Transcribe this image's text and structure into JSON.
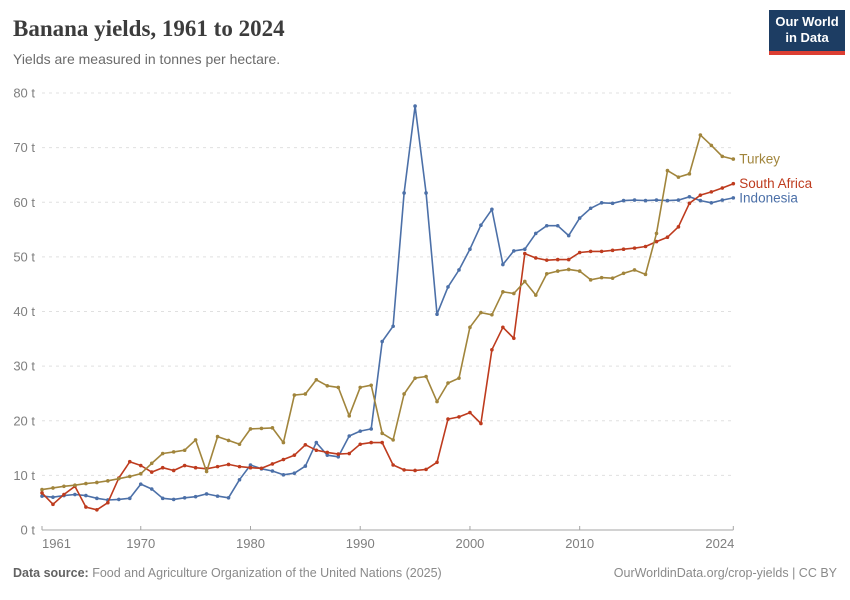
{
  "header": {
    "title": "Banana yields, 1961 to 2024",
    "subtitle": "Yields are measured in tonnes per hectare.",
    "logo": {
      "line1": "Our World",
      "line2": "in Data",
      "bg_color": "#1d3d63",
      "accent_color": "#dc3e32"
    }
  },
  "footer": {
    "source_label": "Data source:",
    "source_text": " Food and Agriculture Organization of the United Nations (2025)",
    "credit_text": "OurWorldinData.org/crop-yields | CC BY"
  },
  "chart_data": {
    "type": "line",
    "title": "Banana yields, 1961 to 2024",
    "ylabel": "tonnes per hectare",
    "ytick_suffix": " t",
    "ylim": [
      0,
      80
    ],
    "yticks": [
      0,
      10,
      20,
      30,
      40,
      50,
      60,
      70,
      80
    ],
    "xticks": [
      1961,
      1970,
      1980,
      1990,
      2000,
      2010,
      2024
    ],
    "grid": "horizontal-dashed",
    "legend_position": "right-of-line-ends",
    "axis_color": "#a5a5a5",
    "grid_color": "#e0e0e0",
    "tick_label_color": "#7f7f7f",
    "x": [
      1961,
      1962,
      1963,
      1964,
      1965,
      1966,
      1967,
      1968,
      1969,
      1970,
      1971,
      1972,
      1973,
      1974,
      1975,
      1976,
      1977,
      1978,
      1979,
      1980,
      1981,
      1982,
      1983,
      1984,
      1985,
      1986,
      1987,
      1988,
      1989,
      1990,
      1991,
      1992,
      1993,
      1994,
      1995,
      1996,
      1997,
      1998,
      1999,
      2000,
      2001,
      2002,
      2003,
      2004,
      2005,
      2006,
      2007,
      2008,
      2009,
      2010,
      2011,
      2012,
      2013,
      2014,
      2015,
      2016,
      2017,
      2018,
      2019,
      2020,
      2021,
      2022,
      2023,
      2024
    ],
    "series": [
      {
        "name": "Turkey",
        "color": "#A1853C",
        "values": [
          7.4,
          7.7,
          8.0,
          8.2,
          8.5,
          8.7,
          9.0,
          9.4,
          9.8,
          10.3,
          12.2,
          14.0,
          14.3,
          14.6,
          16.5,
          10.7,
          17.1,
          16.4,
          15.7,
          18.5,
          18.6,
          18.7,
          16.0,
          24.7,
          24.9,
          27.5,
          26.4,
          26.1,
          20.9,
          26.1,
          26.5,
          17.7,
          16.5,
          24.9,
          27.8,
          28.1,
          23.5,
          26.9,
          27.8,
          37.1,
          39.8,
          39.4,
          43.6,
          43.3,
          45.5,
          43.0,
          46.9,
          47.4,
          47.7,
          47.4,
          45.8,
          46.2,
          46.1,
          47.0,
          47.6,
          46.8,
          54.3,
          65.8,
          64.6,
          65.2,
          72.3,
          70.4,
          68.4,
          67.9
        ]
      },
      {
        "name": "South Africa",
        "color": "#BE3B1E",
        "values": [
          6.8,
          4.7,
          6.5,
          8.0,
          4.2,
          3.7,
          5.0,
          9.5,
          12.5,
          11.8,
          10.6,
          11.4,
          10.9,
          11.8,
          11.4,
          11.2,
          11.6,
          12.0,
          11.6,
          11.4,
          11.3,
          12.1,
          12.9,
          13.7,
          15.6,
          14.6,
          14.2,
          13.9,
          14.0,
          15.7,
          16.0,
          16.0,
          11.9,
          11.0,
          10.9,
          11.1,
          12.4,
          20.3,
          20.7,
          21.5,
          19.5,
          33.0,
          37.1,
          35.1,
          50.6,
          49.8,
          49.4,
          49.5,
          49.5,
          50.8,
          51.0,
          51.0,
          51.2,
          51.4,
          51.6,
          51.9,
          52.8,
          53.6,
          55.5,
          59.8,
          61.3,
          61.9,
          62.6,
          63.4
        ]
      },
      {
        "name": "Indonesia",
        "color": "#4C70A8",
        "values": [
          6.2,
          6.0,
          6.3,
          6.5,
          6.3,
          5.8,
          5.5,
          5.6,
          5.8,
          8.4,
          7.5,
          5.8,
          5.6,
          5.9,
          6.1,
          6.6,
          6.2,
          5.9,
          9.2,
          11.9,
          11.2,
          10.8,
          10.1,
          10.4,
          11.7,
          16.0,
          13.7,
          13.4,
          17.2,
          18.1,
          18.5,
          34.5,
          37.3,
          61.7,
          77.6,
          61.7,
          39.5,
          44.5,
          47.6,
          51.4,
          55.8,
          58.7,
          48.6,
          51.1,
          51.4,
          54.3,
          55.7,
          55.7,
          53.9,
          57.1,
          58.9,
          59.9,
          59.8,
          60.3,
          60.4,
          60.3,
          60.4,
          60.3,
          60.4,
          61.0,
          60.3,
          59.9,
          60.4,
          60.8
        ]
      }
    ]
  }
}
